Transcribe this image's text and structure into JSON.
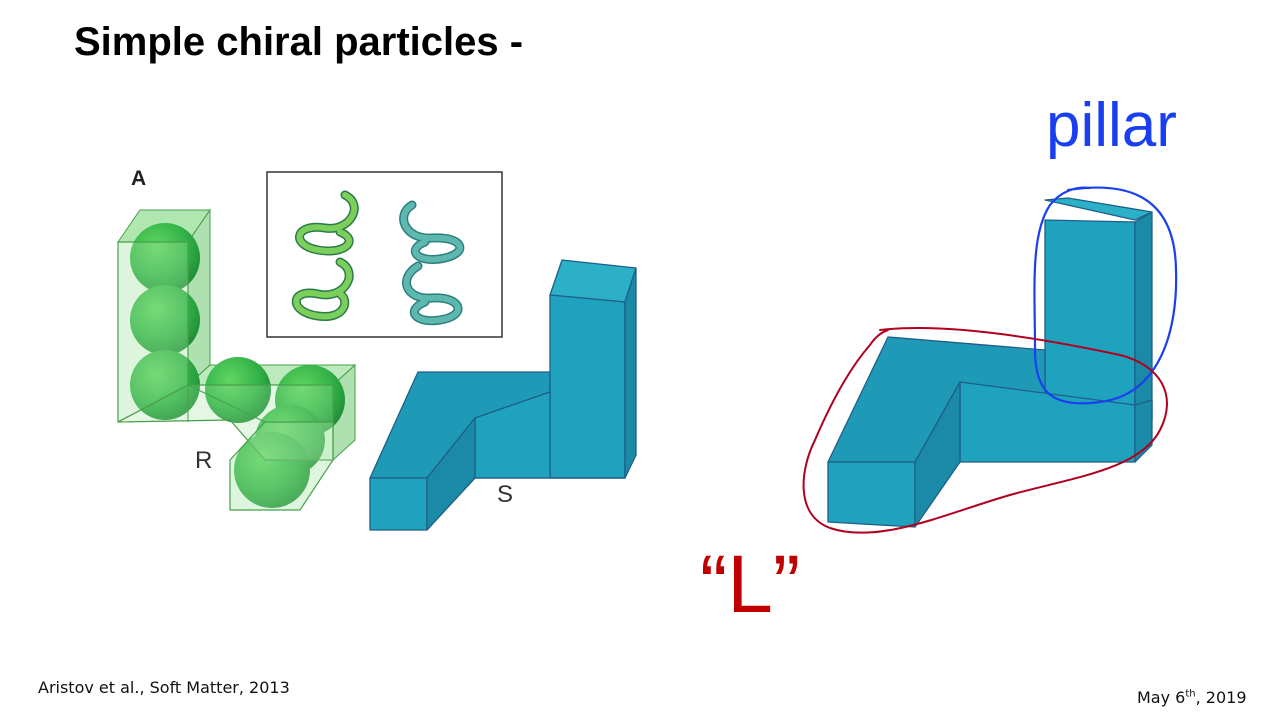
{
  "slide": {
    "title": "Simple chiral particles -",
    "annotations": {
      "pillar": "pillar",
      "l_shape": "“L”"
    },
    "citation": "Aristov et al., Soft Matter, 2013",
    "date": {
      "prefix": "May 6",
      "superscript": "th",
      "suffix": ", 2019"
    }
  },
  "figure": {
    "panel_letter": "A",
    "labels": {
      "r": "R",
      "s": "S"
    }
  },
  "colors": {
    "teal_block": "#1fa2be",
    "green_block": "#7fd68a",
    "blue_ink": "#1a3ff0",
    "red_ink": "#b00020"
  }
}
